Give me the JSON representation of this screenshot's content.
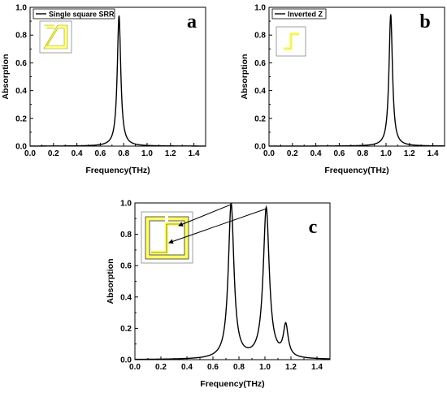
{
  "chart_data": [
    {
      "type": "line",
      "panel_label": "a",
      "xlabel": "Frequency(THz)",
      "ylabel": "Absorption",
      "xlim": [
        0.0,
        1.5
      ],
      "ylim": [
        0.0,
        1.0
      ],
      "xticks": [
        "0.0",
        "0.2",
        "0.4",
        "0.6",
        "0.8",
        "1.0",
        "1.2",
        "1.4"
      ],
      "yticks": [
        "0.0",
        "0.2",
        "0.4",
        "0.6",
        "0.8",
        "1.0"
      ],
      "legend": "top-left",
      "grid": false,
      "series": [
        {
          "name": "Single square SRR",
          "peaks": [
            {
              "x": 0.76,
              "y": 0.94,
              "hwhm": 0.018
            }
          ]
        }
      ],
      "inset": "single-square-srr",
      "line_color": "#000000",
      "inset_color": "#ffff80"
    },
    {
      "type": "line",
      "panel_label": "b",
      "xlabel": "Frequency(THz)",
      "ylabel": "Absorption",
      "xlim": [
        0.0,
        1.5
      ],
      "ylim": [
        0.0,
        1.0
      ],
      "xticks": [
        "0.0",
        "0.2",
        "0.4",
        "0.6",
        "0.8",
        "1.0",
        "1.2",
        "1.4"
      ],
      "yticks": [
        "0.0",
        "0.2",
        "0.4",
        "0.6",
        "0.8",
        "1.0"
      ],
      "legend": "top-left",
      "grid": false,
      "series": [
        {
          "name": "Inverted Z",
          "peaks": [
            {
              "x": 1.04,
              "y": 0.95,
              "hwhm": 0.018
            }
          ]
        }
      ],
      "inset": "inverted-z",
      "line_color": "#000000",
      "inset_color": "#ffff80"
    },
    {
      "type": "line",
      "panel_label": "c",
      "xlabel": "Frequency(THz)",
      "ylabel": "Absorption",
      "xlim": [
        0.0,
        1.5
      ],
      "ylim": [
        0.0,
        1.0
      ],
      "xticks": [
        "0.0",
        "0.2",
        "0.4",
        "0.6",
        "0.8",
        "1.0",
        "1.2",
        "1.4"
      ],
      "yticks": [
        "0.0",
        "0.2",
        "0.4",
        "0.6",
        "0.8",
        "1.0"
      ],
      "grid": false,
      "series": [
        {
          "peaks": [
            {
              "x": 0.74,
              "y": 0.99,
              "hwhm": 0.026
            },
            {
              "x": 1.01,
              "y": 0.96,
              "hwhm": 0.028
            },
            {
              "x": 1.16,
              "y": 0.2,
              "hwhm": 0.022
            }
          ]
        }
      ],
      "inset": "combined-resonator",
      "inset_arrows_to_peaks": [
        0.74,
        1.01
      ],
      "line_color": "#000000",
      "inset_color": "#ffff66"
    }
  ]
}
